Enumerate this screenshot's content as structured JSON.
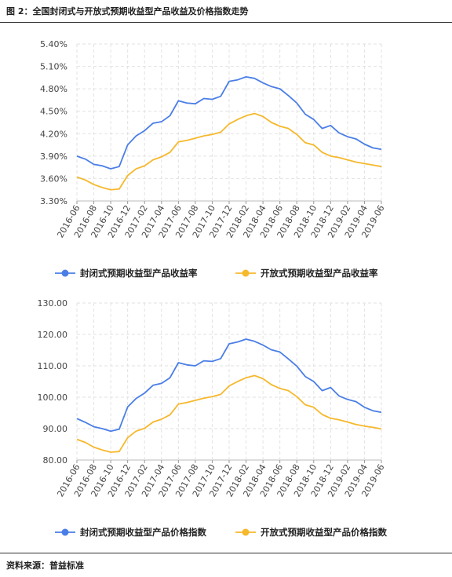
{
  "figure_title": "图 2：全国封闭式与开放式预期收益型产品收益及价格指数走势",
  "source_note": "资料来源：普益标准",
  "colors": {
    "closed": "#4a7ee6",
    "open": "#f6b82c"
  },
  "chart_data": [
    {
      "type": "line",
      "ylim": [
        3.3,
        5.4
      ],
      "yticks": [
        "3.30%",
        "3.60%",
        "3.90%",
        "4.20%",
        "4.50%",
        "4.80%",
        "5.10%",
        "5.40%"
      ],
      "ytick_values": [
        3.3,
        3.6,
        3.9,
        4.2,
        4.5,
        4.8,
        5.1,
        5.4
      ],
      "x": [
        "2016-06",
        "2016-07",
        "2016-08",
        "2016-09",
        "2016-10",
        "2016-11",
        "2016-12",
        "2017-01",
        "2017-02",
        "2017-03",
        "2017-04",
        "2017-05",
        "2017-06",
        "2017-07",
        "2017-08",
        "2017-09",
        "2017-10",
        "2017-11",
        "2017-12",
        "2018-01",
        "2018-02",
        "2018-03",
        "2018-04",
        "2018-05",
        "2018-06",
        "2018-07",
        "2018-08",
        "2018-09",
        "2018-10",
        "2018-11",
        "2018-12",
        "2019-01",
        "2019-02",
        "2019-03",
        "2019-04",
        "2019-05",
        "2019-06"
      ],
      "xtick_labels": [
        "2016-06",
        "2016-08",
        "2016-10",
        "2016-12",
        "2017-02",
        "2017-04",
        "2017-06",
        "2017-08",
        "2017-10",
        "2017-12",
        "2018-02",
        "2018-04",
        "2018-06",
        "2018-08",
        "2018-10",
        "2018-12",
        "2019-02",
        "2019-04",
        "2019-06"
      ],
      "grid": true,
      "legend": "bottom",
      "series": [
        {
          "name": "封闭式预期收益型产品收益率",
          "color_key": "closed",
          "values": [
            3.9,
            3.86,
            3.79,
            3.77,
            3.73,
            3.76,
            4.05,
            4.17,
            4.24,
            4.34,
            4.36,
            4.44,
            4.64,
            4.61,
            4.6,
            4.67,
            4.66,
            4.7,
            4.9,
            4.92,
            4.96,
            4.94,
            4.88,
            4.83,
            4.8,
            4.71,
            4.61,
            4.46,
            4.39,
            4.27,
            4.31,
            4.21,
            4.16,
            4.13,
            4.06,
            4.01,
            3.99
          ]
        },
        {
          "name": "开放式预期收益型产品收益率",
          "color_key": "open",
          "values": [
            3.62,
            3.58,
            3.52,
            3.48,
            3.45,
            3.46,
            3.64,
            3.73,
            3.77,
            3.85,
            3.89,
            3.95,
            4.09,
            4.11,
            4.14,
            4.17,
            4.19,
            4.22,
            4.33,
            4.39,
            4.44,
            4.47,
            4.43,
            4.35,
            4.3,
            4.27,
            4.19,
            4.08,
            4.05,
            3.95,
            3.9,
            3.88,
            3.85,
            3.82,
            3.8,
            3.78,
            3.76
          ]
        }
      ]
    },
    {
      "type": "line",
      "ylim": [
        80,
        130
      ],
      "yticks": [
        "80.00",
        "90.00",
        "100.00",
        "110.00",
        "120.00",
        "130.00"
      ],
      "ytick_values": [
        80,
        90,
        100,
        110,
        120,
        130
      ],
      "x": [
        "2016-06",
        "2016-07",
        "2016-08",
        "2016-09",
        "2016-10",
        "2016-11",
        "2016-12",
        "2017-01",
        "2017-02",
        "2017-03",
        "2017-04",
        "2017-05",
        "2017-06",
        "2017-07",
        "2017-08",
        "2017-09",
        "2017-10",
        "2017-11",
        "2017-12",
        "2018-01",
        "2018-02",
        "2018-03",
        "2018-04",
        "2018-05",
        "2018-06",
        "2018-07",
        "2018-08",
        "2018-09",
        "2018-10",
        "2018-11",
        "2018-12",
        "2019-01",
        "2019-02",
        "2019-03",
        "2019-04",
        "2019-05",
        "2019-06"
      ],
      "xtick_labels": [
        "2016-06",
        "2016-08",
        "2016-10",
        "2016-12",
        "2017-02",
        "2017-04",
        "2017-06",
        "2017-08",
        "2017-10",
        "2017-12",
        "2018-02",
        "2018-04",
        "2018-06",
        "2018-08",
        "2018-10",
        "2018-12",
        "2019-02",
        "2019-04",
        "2019-06"
      ],
      "grid": true,
      "legend": "bottom",
      "series": [
        {
          "name": "封闭式预期收益型产品价格指数",
          "color_key": "closed",
          "values": [
            93.2,
            92.0,
            90.6,
            90.0,
            89.2,
            89.8,
            96.9,
            99.6,
            101.3,
            103.8,
            104.4,
            106.2,
            111.0,
            110.3,
            110.0,
            111.6,
            111.4,
            112.3,
            117.0,
            117.6,
            118.5,
            117.8,
            116.6,
            115.1,
            114.4,
            112.2,
            109.9,
            106.6,
            105.0,
            102.1,
            103.1,
            100.4,
            99.3,
            98.6,
            96.8,
            95.7,
            95.2
          ]
        },
        {
          "name": "开放式预期收益型产品价格指数",
          "color_key": "open",
          "values": [
            86.6,
            85.6,
            84.1,
            83.2,
            82.5,
            82.7,
            87.1,
            89.2,
            90.1,
            92.1,
            93.0,
            94.4,
            97.8,
            98.3,
            99.0,
            99.7,
            100.2,
            100.9,
            103.6,
            105.0,
            106.2,
            106.9,
            105.9,
            104.0,
            102.8,
            102.1,
            100.2,
            97.6,
            96.8,
            94.5,
            93.3,
            92.8,
            92.1,
            91.3,
            90.8,
            90.4,
            89.9
          ]
        }
      ]
    }
  ]
}
